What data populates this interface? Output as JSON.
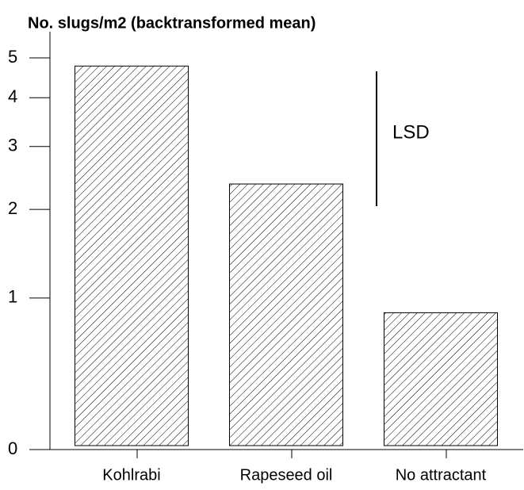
{
  "chart_data": {
    "type": "bar",
    "title": "No. slugs/m2 (backtransformed mean)",
    "categories": [
      "Kohlrabi",
      "Rapeseed oil",
      "No attractant"
    ],
    "values": [
      4.78,
      2.37,
      0.87
    ],
    "color": "#000000",
    "yscale": "log1p",
    "ylim": [
      0,
      5
    ],
    "yticks": [
      0,
      1,
      2,
      3,
      4,
      5
    ],
    "annotation": "LSD"
  }
}
